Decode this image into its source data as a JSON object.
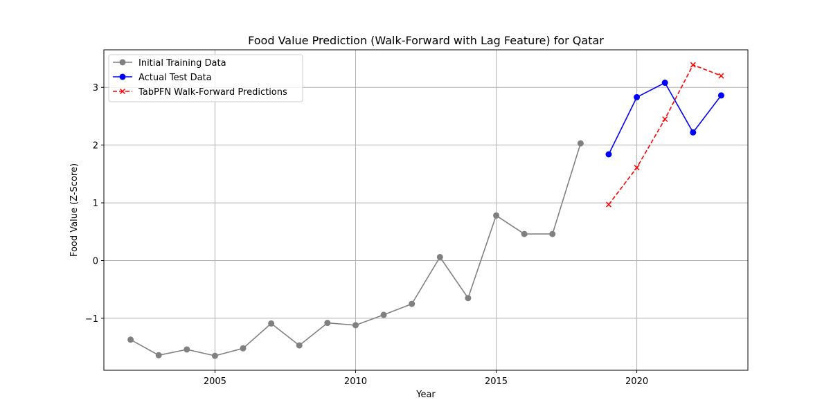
{
  "chart_data": {
    "type": "line",
    "title": "Food Value Prediction (Walk-Forward with Lag Feature) for Qatar",
    "xlabel": "Year",
    "ylabel": "Food Value (Z-Score)",
    "xlim": [
      2001.05,
      2023.95
    ],
    "ylim": [
      -1.9,
      3.65
    ],
    "x_ticks": [
      2005,
      2010,
      2015,
      2020
    ],
    "y_ticks": [
      -1,
      0,
      1,
      2,
      3
    ],
    "grid": true,
    "legend_position": "upper-left",
    "series": [
      {
        "name": "Initial Training Data",
        "color": "#808080",
        "line_style": "solid",
        "marker": "circle",
        "x": [
          2002,
          2003,
          2004,
          2005,
          2006,
          2007,
          2008,
          2009,
          2010,
          2011,
          2012,
          2013,
          2014,
          2015,
          2016,
          2017,
          2018
        ],
        "y": [
          -1.37,
          -1.64,
          -1.54,
          -1.65,
          -1.52,
          -1.09,
          -1.47,
          -1.08,
          -1.12,
          -0.94,
          -0.75,
          0.06,
          -0.65,
          0.78,
          0.46,
          0.46,
          2.03
        ]
      },
      {
        "name": "Actual Test Data",
        "color": "#0000ff",
        "line_style": "solid",
        "marker": "circle",
        "x": [
          2019,
          2020,
          2021,
          2022,
          2023
        ],
        "y": [
          1.84,
          2.83,
          3.08,
          2.22,
          2.86
        ]
      },
      {
        "name": "TabPFN Walk-Forward Predictions",
        "color": "#ff0000",
        "line_style": "dashed",
        "marker": "x",
        "x": [
          2019,
          2020,
          2021,
          2022,
          2023
        ],
        "y": [
          0.97,
          1.61,
          2.45,
          3.39,
          3.2
        ]
      }
    ]
  }
}
